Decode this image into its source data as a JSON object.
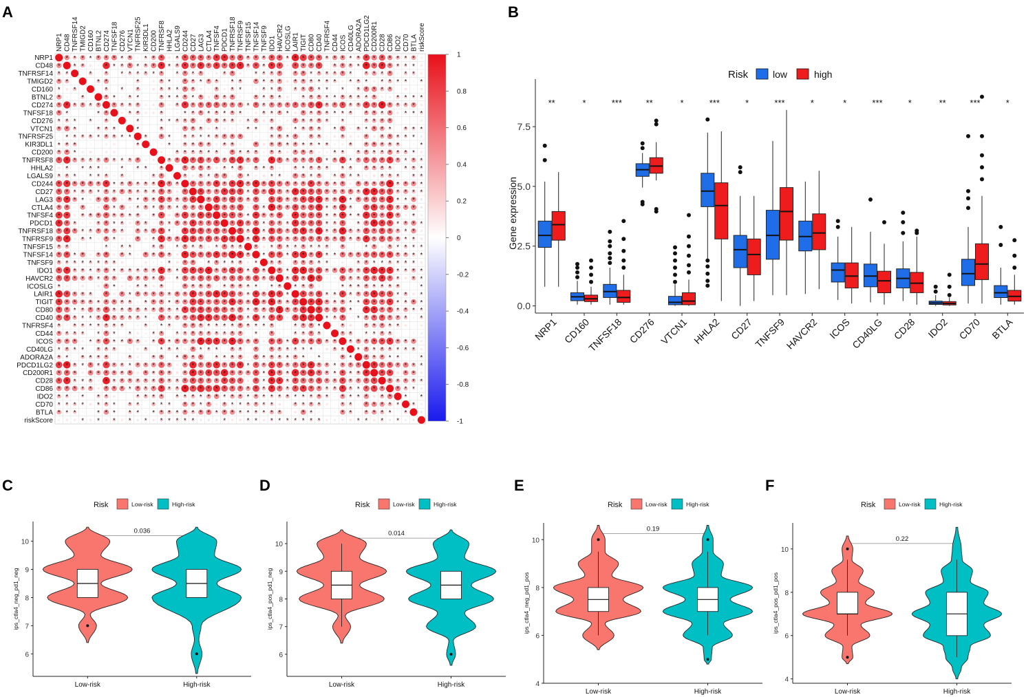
{
  "panels": {
    "A": {
      "label": "A"
    },
    "B": {
      "label": "B"
    },
    "C": {
      "label": "C"
    },
    "D": {
      "label": "D"
    },
    "E": {
      "label": "E"
    },
    "F": {
      "label": "F"
    }
  },
  "colors": {
    "low": "#1f6ee8",
    "high": "#ee1c1c",
    "low_risk": "#f8766d",
    "high_risk": "#00bfc4",
    "corr_pos": "#e8101a",
    "corr_neg": "#1a1aee"
  },
  "chart_data": [
    {
      "panel": "A",
      "type": "heatmap",
      "title": "",
      "genes": [
        "NRP1",
        "CD48",
        "TNFRSF14",
        "TMIGD2",
        "CD160",
        "BTNL2",
        "CD274",
        "TNFSF18",
        "CD276",
        "VTCN1",
        "TNFRSF25",
        "KIR3DL1",
        "CD200",
        "TNFRSF8",
        "HHLA2",
        "LGALS9",
        "CD244",
        "CD27",
        "LAG3",
        "CTLA4",
        "TNFSF4",
        "PDCD1",
        "TNFRSF18",
        "TNFRSF9",
        "TNFSF15",
        "TNFSF14",
        "TNFSF9",
        "IDO1",
        "HAVCR2",
        "ICOSLG",
        "LAIR1",
        "TIGIT",
        "CD80",
        "CD40",
        "TNFRSF4",
        "CD44",
        "ICOS",
        "CD40LG",
        "ADORA2A",
        "PDCD1LG2",
        "CD200R1",
        "CD28",
        "CD86",
        "IDO2",
        "CD70",
        "BTLA",
        "riskScore"
      ],
      "colorbar": {
        "min": -1,
        "max": 1,
        "ticks": [
          "1",
          "0.8",
          "0.6",
          "0.4",
          "0.2",
          "0",
          "-0.2",
          "-0.4",
          "-0.6",
          "-0.8",
          "-1"
        ]
      },
      "significance_mark": "*",
      "cell_values": "symmetric correlation matrix, diagonal = 1; mostly positive, strongest among immune-checkpoint cluster (CD244 … CD86)"
    },
    {
      "panel": "B",
      "type": "box",
      "legend_title": "Risk",
      "groups": [
        "low",
        "high"
      ],
      "ylabel": "Gene expression",
      "ylim": [
        -0.3,
        9.2
      ],
      "yticks": [
        "0.0",
        "2.5",
        "5.0",
        "7.5"
      ],
      "categories": [
        "NRP1",
        "CD160",
        "TNFSF18",
        "CD276",
        "VTCN1",
        "HHLA2",
        "CD27",
        "TNFSF9",
        "HAVCR2",
        "ICOS",
        "CD40LG",
        "CD28",
        "IDO2",
        "CD70",
        "BTLA"
      ],
      "significance": [
        "**",
        "*",
        "***",
        "**",
        "*",
        "***",
        "*",
        "***",
        "*",
        "*",
        "***",
        "*",
        "**",
        "***",
        "*"
      ],
      "series": [
        {
          "name": "low",
          "boxes": [
            [
              0.8,
              2.45,
              2.95,
              3.55,
              5.2
            ],
            [
              0.05,
              0.22,
              0.38,
              0.55,
              1.05
            ],
            [
              0.05,
              0.35,
              0.6,
              0.9,
              1.6
            ],
            [
              4.95,
              5.42,
              5.7,
              5.95,
              6.4
            ],
            [
              0.0,
              0.05,
              0.15,
              0.4,
              0.9
            ],
            [
              1.9,
              4.15,
              4.8,
              5.55,
              7.25
            ],
            [
              0.0,
              1.6,
              2.35,
              2.95,
              4.6
            ],
            [
              0.45,
              1.95,
              2.95,
              4.0,
              6.9
            ],
            [
              0.5,
              2.3,
              2.9,
              3.55,
              5.2
            ],
            [
              0.25,
              1.0,
              1.5,
              1.8,
              2.9
            ],
            [
              0.15,
              0.8,
              1.25,
              1.75,
              3.1
            ],
            [
              0.2,
              0.75,
              1.15,
              1.55,
              2.7
            ],
            [
              0.0,
              0.06,
              0.12,
              0.2,
              0.45
            ],
            [
              0.1,
              0.85,
              1.35,
              1.95,
              3.3
            ],
            [
              0.05,
              0.35,
              0.55,
              0.85,
              1.6
            ]
          ],
          "outliers": [
            [
              6.1,
              6.7
            ],
            [
              1.2,
              1.4,
              1.6,
              1.75
            ],
            [
              1.8,
              2.0,
              2.2,
              2.5,
              2.7,
              3.1
            ],
            [
              4.25,
              4.35,
              6.6,
              6.8
            ],
            [
              1.0,
              1.3,
              1.6,
              1.9,
              2.2,
              2.45
            ],
            [
              0.85,
              1.05,
              1.35,
              1.65,
              1.9,
              7.8
            ],
            [
              5.6,
              5.8
            ],
            [],
            [],
            [
              3.3,
              3.55
            ],
            [
              4.45
            ],
            [
              3.05,
              3.5,
              3.9
            ],
            [
              0.6,
              0.8
            ],
            [
              4.1,
              4.5,
              4.8,
              7.1
            ],
            [
              2.55,
              3.3
            ]
          ]
        },
        {
          "name": "high",
          "boxes": [
            [
              0.8,
              2.75,
              3.4,
              3.95,
              5.6
            ],
            [
              0.05,
              0.18,
              0.3,
              0.45,
              0.8
            ],
            [
              0.05,
              0.15,
              0.35,
              0.65,
              1.3
            ],
            [
              5.25,
              5.55,
              5.85,
              6.2,
              6.85
            ],
            [
              0.0,
              0.05,
              0.2,
              0.55,
              1.1
            ],
            [
              0.2,
              2.8,
              4.2,
              5.15,
              7.3
            ],
            [
              0.2,
              1.3,
              2.15,
              2.8,
              4.6
            ],
            [
              0.45,
              2.75,
              3.95,
              4.95,
              8.2
            ],
            [
              0.7,
              2.35,
              3.05,
              3.85,
              5.65
            ],
            [
              0.1,
              0.75,
              1.25,
              1.8,
              3.3
            ],
            [
              0.05,
              0.55,
              1.05,
              1.45,
              2.6
            ],
            [
              0.05,
              0.55,
              0.95,
              1.4,
              2.9
            ],
            [
              0.0,
              0.04,
              0.1,
              0.18,
              0.35
            ],
            [
              0.1,
              1.1,
              1.75,
              2.6,
              4.6
            ],
            [
              0.05,
              0.2,
              0.4,
              0.65,
              1.3
            ]
          ],
          "outliers": [
            [],
            [
              1.0,
              1.3,
              1.6,
              1.9
            ],
            [
              1.6,
              1.9,
              2.3,
              2.8,
              3.55
            ],
            [
              3.95,
              4.05,
              7.6,
              7.75
            ],
            [
              1.4,
              1.7,
              2.1,
              2.5,
              2.9,
              3.8
            ],
            [],
            [],
            [],
            [],
            [],
            [
              3.5
            ],
            [
              3.05,
              3.15
            ],
            [
              0.45,
              0.8,
              1.3
            ],
            [
              5.3,
              5.8,
              6.3,
              7.1,
              8.75
            ],
            [
              1.6,
              2.1,
              2.75
            ]
          ]
        }
      ]
    },
    {
      "panel": "C",
      "type": "violin",
      "legend_title": "Risk",
      "legend_labels": [
        "Low-risk",
        "High-risk"
      ],
      "categories": [
        "Low-risk",
        "High-risk"
      ],
      "ylabel": "ips_ctla4_neg_pd1_neg",
      "ylim": [
        5.2,
        10.7
      ],
      "yticks": [
        6,
        7,
        8,
        9,
        10
      ],
      "pvalue": "0.036",
      "bracket_y": 10.2,
      "density_peaks": [
        [
          [
            6.4,
            0.02
          ],
          [
            7.0,
            0.2
          ],
          [
            7.4,
            0.06
          ],
          [
            8.0,
            0.9
          ],
          [
            8.5,
            0.3
          ],
          [
            9.0,
            1.0
          ],
          [
            9.5,
            0.3
          ],
          [
            10.0,
            0.5
          ],
          [
            10.5,
            0.02
          ]
        ],
        [
          [
            5.3,
            0.02
          ],
          [
            6.0,
            0.12
          ],
          [
            6.5,
            0.05
          ],
          [
            7.0,
            0.1
          ],
          [
            8.0,
            1.0
          ],
          [
            8.5,
            0.45
          ],
          [
            9.0,
            1.0
          ],
          [
            9.5,
            0.4
          ],
          [
            10.0,
            0.45
          ],
          [
            10.5,
            0.02
          ]
        ]
      ],
      "boxes": [
        [
          8.0,
          8.0,
          8.5,
          9.0,
          9.0
        ],
        [
          8.0,
          8.0,
          8.5,
          9.0,
          9.0
        ]
      ],
      "outliers": [
        [
          7.0
        ],
        [
          6.0
        ]
      ]
    },
    {
      "panel": "D",
      "type": "violin",
      "legend_title": "Risk",
      "legend_labels": [
        "Low-risk",
        "High-risk"
      ],
      "categories": [
        "Low-risk",
        "High-risk"
      ],
      "ylabel": "ips_ctla4_pos_pd1_neg",
      "ylim": [
        5.2,
        10.8
      ],
      "yticks": [
        6,
        7,
        8,
        9,
        10
      ],
      "pvalue": "0.014",
      "bracket_y": 10.2,
      "density_peaks": [
        [
          [
            6.4,
            0.02
          ],
          [
            7.0,
            0.2
          ],
          [
            7.4,
            0.08
          ],
          [
            8.0,
            0.95
          ],
          [
            8.5,
            0.4
          ],
          [
            9.0,
            1.0
          ],
          [
            9.5,
            0.4
          ],
          [
            10.0,
            0.55
          ],
          [
            10.5,
            0.02
          ]
        ],
        [
          [
            5.6,
            0.02
          ],
          [
            6.0,
            0.1
          ],
          [
            6.5,
            0.05
          ],
          [
            7.0,
            0.55
          ],
          [
            7.5,
            0.3
          ],
          [
            8.0,
            0.95
          ],
          [
            8.5,
            0.45
          ],
          [
            9.0,
            1.0
          ],
          [
            9.5,
            0.3
          ],
          [
            10.0,
            0.4
          ],
          [
            10.5,
            0.02
          ]
        ]
      ],
      "boxes": [
        [
          7.0,
          8.0,
          8.5,
          9.0,
          10.0
        ],
        [
          8.0,
          8.0,
          8.5,
          9.0,
          9.0
        ]
      ],
      "outliers": [
        [],
        [
          6.0
        ]
      ]
    },
    {
      "panel": "E",
      "type": "violin",
      "legend_title": "Risk",
      "legend_labels": [
        "Low-risk",
        "High-risk"
      ],
      "categories": [
        "Low-risk",
        "High-risk"
      ],
      "ylabel": "ips_ctla4_neg_pd1_pos",
      "ylim": [
        4.0,
        10.7
      ],
      "yticks": [
        4,
        6,
        8,
        10
      ],
      "pvalue": "0.19",
      "bracket_y": 10.25,
      "density_peaks": [
        [
          [
            5.4,
            0.02
          ],
          [
            6.0,
            0.35
          ],
          [
            6.5,
            0.15
          ],
          [
            7.0,
            0.95
          ],
          [
            7.5,
            0.55
          ],
          [
            8.0,
            1.0
          ],
          [
            8.5,
            0.3
          ],
          [
            9.0,
            0.45
          ],
          [
            9.5,
            0.15
          ],
          [
            10.0,
            0.15
          ],
          [
            10.6,
            0.02
          ]
        ],
        [
          [
            4.8,
            0.02
          ],
          [
            5.0,
            0.08
          ],
          [
            5.5,
            0.1
          ],
          [
            6.0,
            0.55
          ],
          [
            6.5,
            0.35
          ],
          [
            7.0,
            1.0
          ],
          [
            7.5,
            0.5
          ],
          [
            8.0,
            1.0
          ],
          [
            8.5,
            0.3
          ],
          [
            9.0,
            0.35
          ],
          [
            9.5,
            0.12
          ],
          [
            10.0,
            0.12
          ],
          [
            10.6,
            0.02
          ]
        ]
      ],
      "boxes": [
        [
          6.0,
          7.0,
          7.5,
          8.0,
          9.5
        ],
        [
          6.0,
          7.0,
          7.5,
          8.0,
          9.5
        ]
      ],
      "outliers": [
        [
          10.0
        ],
        [
          10.0,
          5.0
        ]
      ]
    },
    {
      "panel": "F",
      "type": "violin",
      "legend_title": "Risk",
      "legend_labels": [
        "Low-risk",
        "High-risk"
      ],
      "categories": [
        "Low-risk",
        "High-risk"
      ],
      "ylabel": "ips_ctla4_pos_pd1_pos",
      "ylim": [
        3.8,
        11.2
      ],
      "yticks": [
        4,
        6,
        8,
        10
      ],
      "pvalue": "0.22",
      "bracket_y": 10.25,
      "density_peaks": [
        [
          [
            4.7,
            0.02
          ],
          [
            5.0,
            0.12
          ],
          [
            5.5,
            0.1
          ],
          [
            6.0,
            0.5
          ],
          [
            6.5,
            0.3
          ],
          [
            7.0,
            1.0
          ],
          [
            7.5,
            0.4
          ],
          [
            8.0,
            0.6
          ],
          [
            8.5,
            0.25
          ],
          [
            9.0,
            0.35
          ],
          [
            9.5,
            0.1
          ],
          [
            10.0,
            0.12
          ],
          [
            10.6,
            0.02
          ]
        ],
        [
          [
            4.0,
            0.02
          ],
          [
            4.5,
            0.1
          ],
          [
            5.0,
            0.25
          ],
          [
            5.5,
            0.3
          ],
          [
            6.0,
            0.75
          ],
          [
            6.5,
            0.6
          ],
          [
            7.0,
            1.0
          ],
          [
            7.5,
            0.6
          ],
          [
            8.0,
            0.7
          ],
          [
            8.5,
            0.3
          ],
          [
            9.0,
            0.35
          ],
          [
            9.5,
            0.12
          ],
          [
            10.0,
            0.1
          ],
          [
            11.0,
            0.02
          ]
        ]
      ],
      "boxes": [
        [
          6.0,
          7.0,
          7.0,
          8.0,
          9.5
        ],
        [
          5.0,
          6.0,
          7.0,
          8.0,
          9.5
        ]
      ],
      "outliers": [
        [
          10.0,
          5.0
        ],
        []
      ]
    }
  ]
}
